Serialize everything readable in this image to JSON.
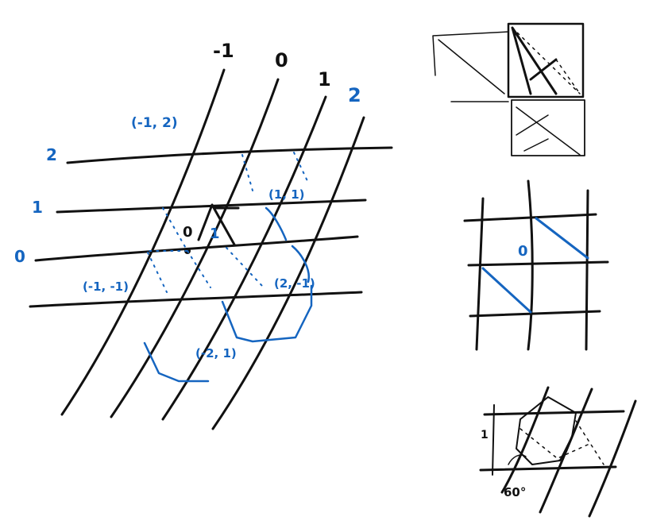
{
  "main_sketch": {
    "column_labels": [
      "-1",
      "0",
      "1",
      "2"
    ],
    "row_labels": [
      "2",
      "1",
      "0"
    ],
    "cell_labels": {
      "cell_a": "0",
      "cell_b": "1"
    },
    "coordinate_labels": [
      "(-1, 2)",
      "(1, 1)",
      "(-1, -1)",
      "(2, -1)",
      "(-2, 1)"
    ]
  },
  "square_grid_sketch": {
    "center_label": "0"
  },
  "bottom_sketch": {
    "row_label": "1",
    "angle_label": "60°"
  },
  "colors": {
    "ink": "#111111",
    "accent": "#1565c0",
    "background": "#ffffff"
  }
}
